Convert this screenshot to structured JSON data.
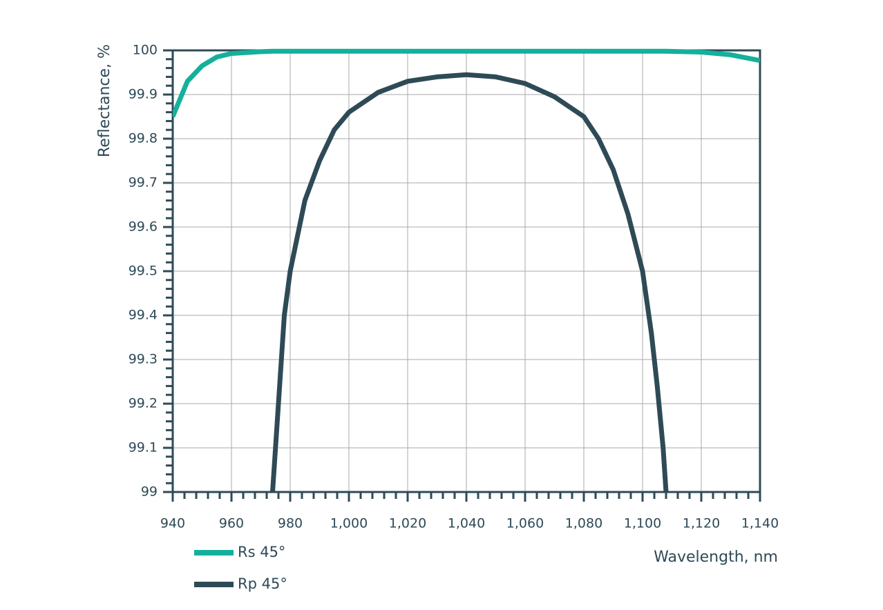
{
  "chart_data": {
    "type": "line",
    "y_label": "Reflectance, %",
    "x_label": "Wavelength, nm",
    "x": [
      940,
      945,
      950,
      955,
      960,
      970,
      974,
      976,
      978,
      980,
      985,
      990,
      995,
      1000,
      1010,
      1020,
      1030,
      1040,
      1050,
      1060,
      1070,
      1080,
      1085,
      1090,
      1095,
      1100,
      1103,
      1105,
      1107,
      1108,
      1120,
      1130,
      1140
    ],
    "series": [
      {
        "name": "Rs 45°",
        "color": "#14b09b",
        "values": [
          99.85,
          99.93,
          99.965,
          99.985,
          99.993,
          99.997,
          99.998,
          99.998,
          99.998,
          99.998,
          99.998,
          99.998,
          99.998,
          99.998,
          99.998,
          99.998,
          99.998,
          99.998,
          99.998,
          99.998,
          99.998,
          99.998,
          99.998,
          99.998,
          99.998,
          99.998,
          99.998,
          99.998,
          99.998,
          99.998,
          99.996,
          99.99,
          99.977
        ]
      },
      {
        "name": "Rp 45°",
        "color": "#2e4a56",
        "values": [
          null,
          null,
          null,
          null,
          null,
          null,
          99.0,
          99.2,
          99.4,
          99.5,
          99.66,
          99.75,
          99.82,
          99.86,
          99.905,
          99.93,
          99.94,
          99.945,
          99.94,
          99.925,
          99.895,
          99.85,
          99.8,
          99.73,
          99.63,
          99.5,
          99.36,
          99.24,
          99.1,
          99.0,
          null,
          null,
          null
        ]
      }
    ],
    "xlim": [
      940,
      1140
    ],
    "xticks": [
      940,
      960,
      980,
      {
        "value": 1000,
        "label": "1,000"
      },
      {
        "value": 1020,
        "label": "1,020"
      },
      {
        "value": 1040,
        "label": "1,040"
      },
      {
        "value": 1060,
        "label": "1,060"
      },
      {
        "value": 1080,
        "label": "1,080"
      },
      {
        "value": 1100,
        "label": "1,100"
      },
      {
        "value": 1120,
        "label": "1,120"
      },
      {
        "value": 1140,
        "label": "1,140"
      }
    ],
    "ylim": [
      99,
      100
    ],
    "yticks": [
      99,
      99.1,
      99.2,
      99.3,
      99.4,
      99.5,
      99.6,
      99.7,
      99.8,
      99.9,
      100
    ],
    "grid": true
  }
}
